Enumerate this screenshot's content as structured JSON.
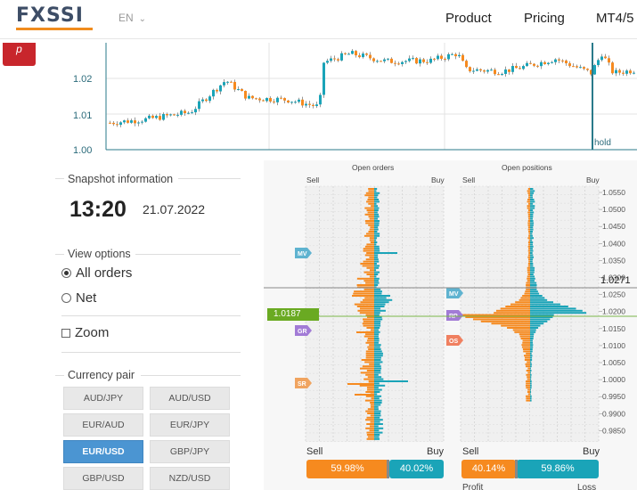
{
  "header": {
    "logo": "FXSSI",
    "language": "EN",
    "nav": [
      "Product",
      "Pricing",
      "MT4/5"
    ]
  },
  "share_tab": "p",
  "price_chart": {
    "y_ticks": [
      "1.02",
      "1.01",
      "1.00"
    ],
    "hold_label": "hold",
    "ylim": [
      1.0,
      1.03
    ]
  },
  "snapshot": {
    "title": "Snapshot information",
    "time": "13:20",
    "date": "21.07.2022"
  },
  "view_options": {
    "title": "View options",
    "all_orders": "All orders",
    "net": "Net",
    "zoom": "Zoom"
  },
  "currency_pair": {
    "title": "Currency pair",
    "pairs": [
      "AUD/JPY",
      "AUD/USD",
      "EUR/AUD",
      "EUR/JPY",
      "EUR/USD",
      "GBP/JPY",
      "GBP/USD",
      "NZD/USD"
    ],
    "active": "EUR/USD"
  },
  "order_book": {
    "open_orders_title": "Open orders",
    "open_positions_title": "Open positions",
    "sell": "Sell",
    "buy": "Buy",
    "price_levels": [
      "1.0550",
      "1.0500",
      "1.0450",
      "1.0400",
      "1.0350",
      "1.0300",
      "1.0250",
      "1.0200",
      "1.0150",
      "1.0100",
      "1.0050",
      "1.0000",
      "0.9950",
      "0.9900",
      "0.9850"
    ],
    "current_price": "1.0271",
    "green_price": "1.0187",
    "markers_orders": [
      "MV",
      "GR",
      "SR"
    ],
    "markers_positions": [
      "MV",
      "RP",
      "OS"
    ],
    "orders_sell_pct": "59.98%",
    "orders_buy_pct": "40.02%",
    "positions_sell_pct": "40.14%",
    "positions_buy_pct": "59.86%",
    "profit": "Profit",
    "loss": "Loss"
  },
  "colors": {
    "orange": "#f68a1f",
    "teal": "#1aa4b8",
    "green": "#6aaa22",
    "blue": "#4b95d2"
  }
}
